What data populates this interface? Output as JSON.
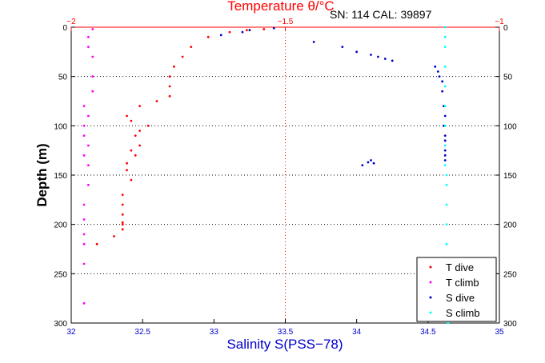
{
  "header": {
    "annotation": "SN: 114  CAL: 39897"
  },
  "chart_data": {
    "type": "scatter",
    "title": "",
    "y_axis": {
      "label": "Depth (m)",
      "range": [
        0,
        300
      ],
      "reversed": true,
      "ticks": [
        0,
        50,
        100,
        150,
        200,
        250,
        300
      ],
      "color": "#000000"
    },
    "x_axis_bottom": {
      "label": "Salinity S(PSS−78)",
      "range": [
        32,
        35
      ],
      "ticks": [
        32,
        32.5,
        33,
        33.5,
        34,
        34.5,
        35
      ],
      "tick_labels": [
        "32",
        "32.5",
        "33",
        "33.5",
        "34",
        "34.5",
        "35"
      ],
      "color": "#0000cc"
    },
    "x_axis_top": {
      "label": "Temperature θ/°C",
      "range": [
        -2,
        -1
      ],
      "ticks": [
        -2,
        -1.5,
        -1
      ],
      "tick_labels": [
        "−2",
        "−1.5",
        "−1"
      ],
      "color": "#ff0000"
    },
    "grid": {
      "horizontal": "dotted",
      "vertical_at": {
        "axis": "x_axis_top",
        "value": -1.5,
        "color": "#ff0000"
      }
    },
    "legend": {
      "placement": "bottom-right"
    },
    "series": [
      {
        "name": "T dive",
        "axis": "x_axis_top",
        "color": "#ff0000",
        "x": [
          -1.55,
          -1.59,
          -1.63,
          -1.68,
          -1.72,
          -1.74,
          -1.76,
          -1.77,
          -1.77,
          -1.77,
          -1.8,
          -1.84,
          -1.87,
          -1.86,
          -1.82,
          -1.84,
          -1.85,
          -1.84,
          -1.86,
          -1.85,
          -1.87,
          -1.87,
          -1.86,
          -1.88,
          -1.88,
          -1.88,
          -1.88,
          -1.88,
          -1.88,
          -1.9,
          -1.94
        ],
        "y": [
          2,
          3,
          5,
          10,
          20,
          30,
          40,
          50,
          60,
          70,
          75,
          80,
          90,
          95,
          100,
          105,
          110,
          120,
          125,
          130,
          138,
          145,
          155,
          170,
          180,
          190,
          198,
          200,
          205,
          212,
          220
        ]
      },
      {
        "name": "T climb",
        "axis": "x_axis_top",
        "color": "#ff00ff",
        "x": [
          -1.95,
          -1.96,
          -1.96,
          -1.95,
          -1.95,
          -1.95,
          -1.97,
          -1.96,
          -1.97,
          -1.97,
          -1.96,
          -1.97,
          -1.96,
          -1.96,
          -1.97,
          -1.97,
          -1.97,
          -1.97,
          -1.97,
          -1.97
        ],
        "y": [
          2,
          10,
          20,
          30,
          50,
          65,
          80,
          90,
          100,
          110,
          120,
          130,
          140,
          160,
          180,
          195,
          210,
          220,
          240,
          280
        ]
      },
      {
        "name": "S dive",
        "axis": "x_axis_bottom",
        "color": "#0000cc",
        "x": [
          33.42,
          33.25,
          33.2,
          33.05,
          33.7,
          33.9,
          34.0,
          34.1,
          34.15,
          34.2,
          34.25,
          34.55,
          34.57,
          34.58,
          34.6,
          34.6,
          34.61,
          34.62,
          34.61,
          34.62,
          34.62,
          34.62,
          34.62,
          34.62,
          34.04,
          34.08,
          34.1,
          34.12
        ],
        "y": [
          1,
          3,
          5,
          8,
          15,
          20,
          25,
          28,
          30,
          32,
          34,
          40,
          45,
          50,
          55,
          65,
          80,
          90,
          100,
          110,
          115,
          125,
          130,
          135,
          140,
          137,
          135,
          138
        ]
      },
      {
        "name": "S climb",
        "axis": "x_axis_bottom",
        "color": "#00ffff",
        "x": [
          34.62,
          34.62,
          34.62,
          34.62,
          34.62,
          34.62,
          34.62,
          34.62,
          34.62,
          34.63,
          34.63,
          34.63,
          34.63,
          34.63,
          34.63,
          34.63,
          34.64,
          34.64,
          34.64
        ],
        "y": [
          0,
          10,
          20,
          40,
          60,
          80,
          100,
          120,
          140,
          150,
          160,
          180,
          200,
          220,
          240,
          250,
          260,
          280,
          300
        ]
      }
    ]
  }
}
